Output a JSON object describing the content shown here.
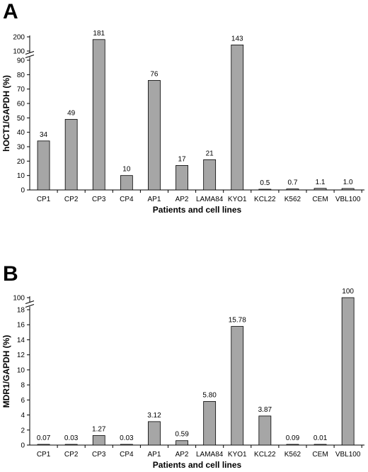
{
  "chart_data": [
    {
      "type": "bar",
      "panel": "A",
      "categories": [
        "CP1",
        "CP2",
        "CP3",
        "CP4",
        "AP1",
        "AP2",
        "LAMA84",
        "KYO1",
        "KCL22",
        "K562",
        "CEM",
        "VBL100"
      ],
      "values": [
        34,
        49,
        181,
        10,
        76,
        17,
        21,
        143,
        0.5,
        0.7,
        1.1,
        1.0
      ],
      "value_labels": [
        "34",
        "49",
        "181",
        "10",
        "76",
        "17",
        "21",
        "143",
        "0.5",
        "0.7",
        "1.1",
        "1.0"
      ],
      "xlabel": "Patients and cell lines",
      "ylabel": "hOCT1/GAPDH (%)",
      "lower_ticks": [
        0,
        10,
        20,
        30,
        40,
        50,
        60,
        70,
        80,
        90
      ],
      "upper_ticks": [
        100,
        200
      ],
      "axis_break": [
        90,
        100
      ],
      "ylim": [
        0,
        200
      ],
      "bar_color": "#a6a6a6",
      "grid": false
    },
    {
      "type": "bar",
      "panel": "B",
      "categories": [
        "CP1",
        "CP2",
        "CP3",
        "CP4",
        "AP1",
        "AP2",
        "LAMA84",
        "KYO1",
        "KCL22",
        "K562",
        "CEM",
        "VBL100"
      ],
      "values": [
        0.07,
        0.03,
        1.27,
        0.03,
        3.12,
        0.59,
        5.8,
        15.78,
        3.87,
        0.09,
        0.01,
        100
      ],
      "value_labels": [
        "0.07",
        "0.03",
        "1.27",
        "0.03",
        "3.12",
        "0.59",
        "5.80",
        "15.78",
        "3.87",
        "0.09",
        "0.01",
        "100"
      ],
      "xlabel": "Patients and cell lines",
      "ylabel": "MDR1/GAPDH (%)",
      "lower_ticks": [
        0,
        2,
        4,
        6,
        8,
        10,
        12,
        14,
        16,
        18
      ],
      "upper_ticks": [
        100
      ],
      "axis_break": [
        18,
        100
      ],
      "ylim": [
        0,
        100
      ],
      "bar_color": "#a6a6a6",
      "grid": false
    }
  ],
  "panels": {
    "a_letter": "A",
    "b_letter": "B"
  }
}
